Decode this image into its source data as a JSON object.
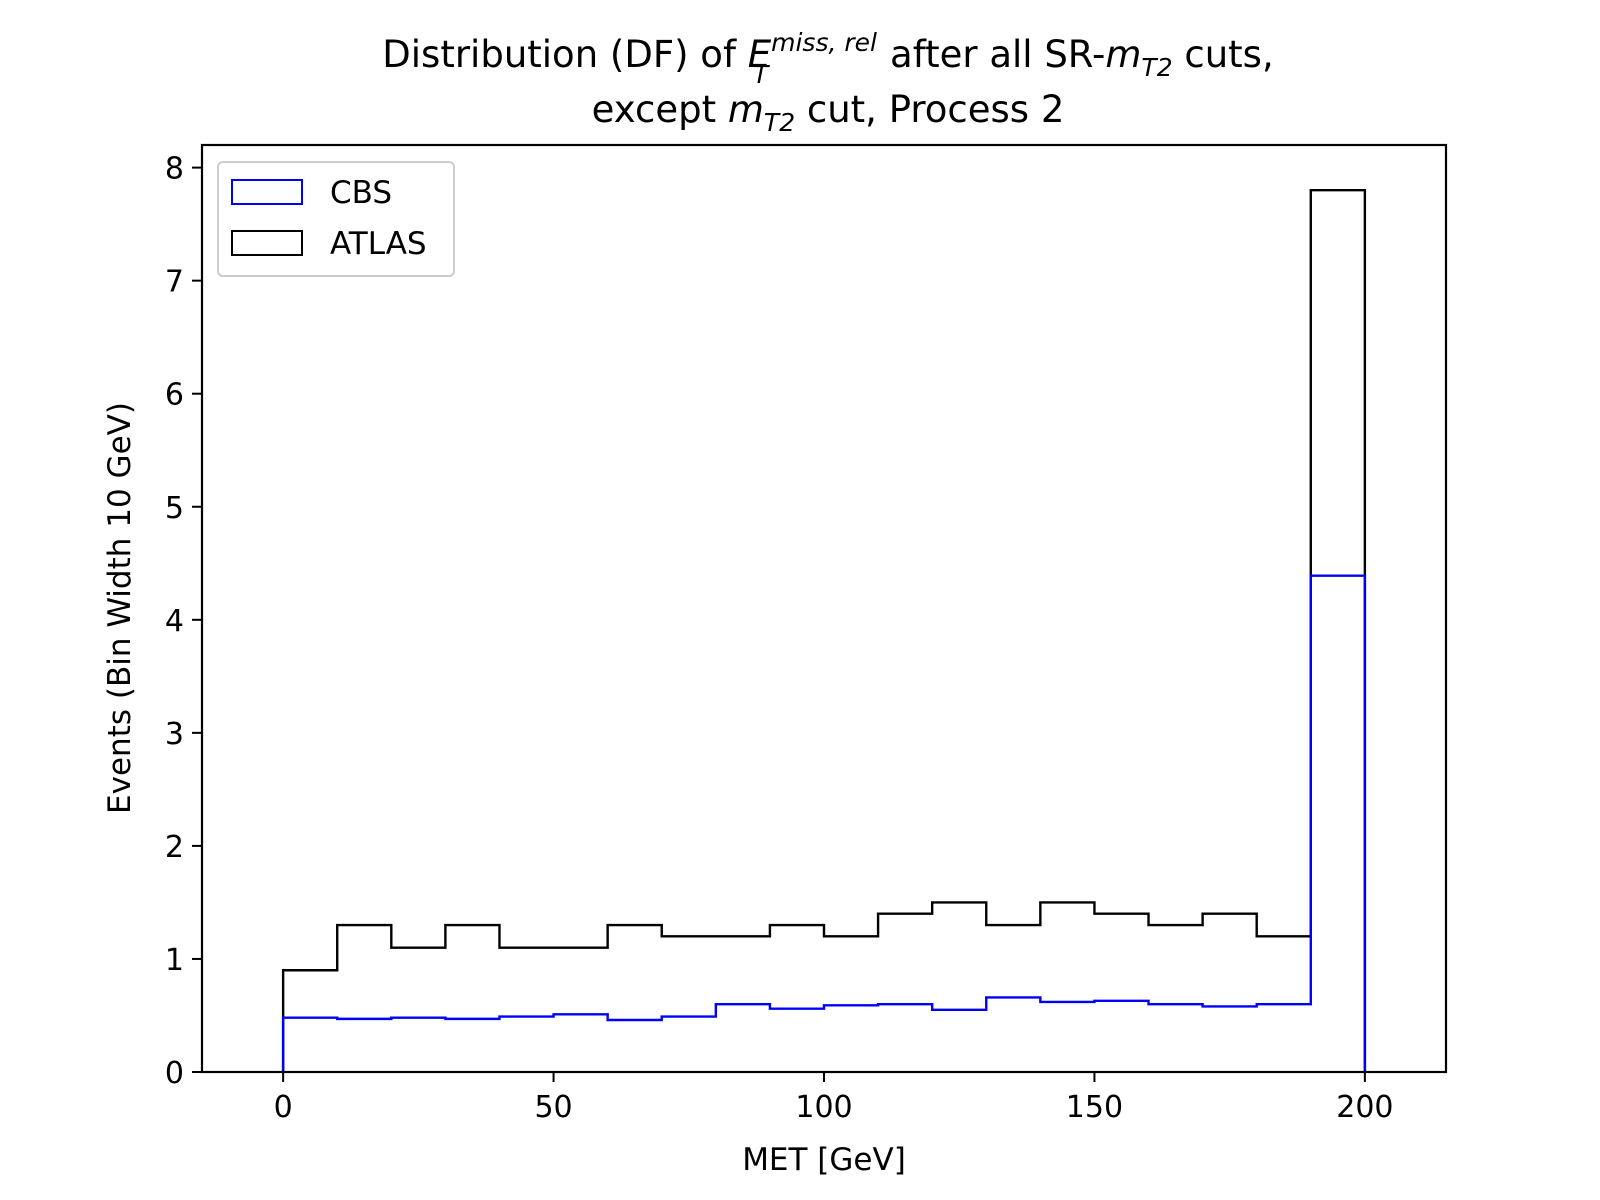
{
  "chart_data": {
    "type": "histogram",
    "title": {
      "line1_prefix": "Distribution (DF) of ",
      "line1_e": "E",
      "line1_e_sup": "miss, rel",
      "line1_e_sub": "T",
      "line1_mid": " after all SR-",
      "line1_m": "m",
      "line1_m_sub": "T2",
      "line1_suffix": " cuts,",
      "line2_prefix": "except ",
      "line2_m": "m",
      "line2_m_sub": "T2",
      "line2_suffix": " cut, Process 2"
    },
    "xlabel": "MET [GeV]",
    "ylabel": "Events (Bin Width 10 GeV)",
    "xlim": [
      -15,
      215
    ],
    "ylim": [
      0,
      8.2
    ],
    "xticks": [
      0,
      50,
      100,
      150,
      200
    ],
    "yticks": [
      0,
      1,
      2,
      3,
      4,
      5,
      6,
      7,
      8
    ],
    "bin_edges": [
      0,
      10,
      20,
      30,
      40,
      50,
      60,
      70,
      80,
      90,
      100,
      110,
      120,
      130,
      140,
      150,
      160,
      170,
      180,
      190,
      200
    ],
    "legend_position": "upper-left",
    "series": [
      {
        "name": "CBS",
        "color": "#0000ff",
        "values": [
          0.48,
          0.47,
          0.48,
          0.47,
          0.49,
          0.51,
          0.46,
          0.49,
          0.6,
          0.56,
          0.59,
          0.6,
          0.55,
          0.66,
          0.62,
          0.63,
          0.6,
          0.58,
          0.6,
          4.39
        ]
      },
      {
        "name": "ATLAS",
        "color": "#000000",
        "values": [
          0.9,
          1.3,
          1.1,
          1.3,
          1.1,
          1.1,
          1.3,
          1.2,
          1.2,
          1.3,
          1.2,
          1.4,
          1.5,
          1.3,
          1.5,
          1.4,
          1.3,
          1.4,
          1.2,
          7.8
        ]
      }
    ]
  }
}
